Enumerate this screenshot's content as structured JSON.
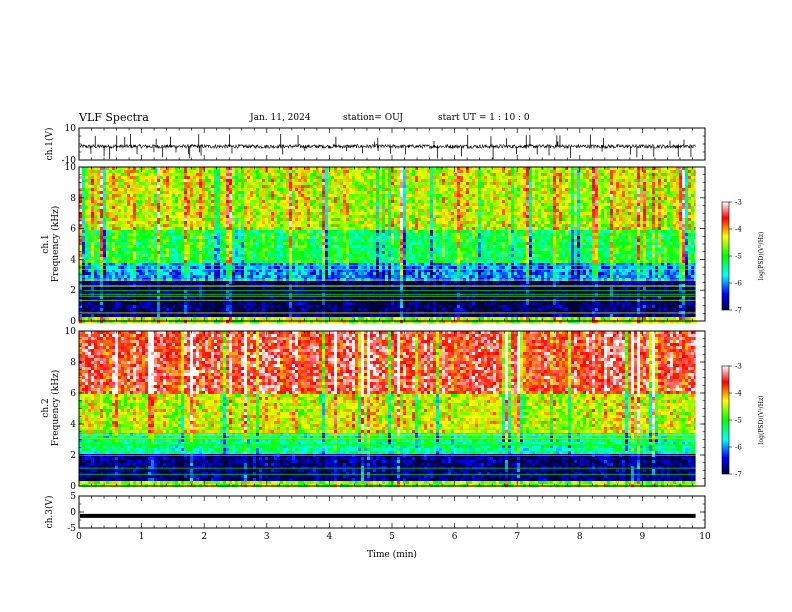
{
  "header": {
    "title": "VLF Spectra",
    "date": "Jan. 11, 2024",
    "station": "station= OUJ",
    "start": "start  UT =   1 : 10 : 0"
  },
  "chart_data": [
    {
      "type": "line",
      "panel": "ch1-waveform",
      "ylabel": "ch.1(V)",
      "ylim": [
        -10,
        10
      ],
      "yticks": [
        "10",
        "-10"
      ],
      "xlim": [
        0,
        10
      ],
      "series": [
        {
          "baseline": -1.5,
          "noise_amplitude": 1.2,
          "spike_amplitude": 8,
          "x_end": 9.85
        }
      ],
      "color": "#000000"
    },
    {
      "type": "heatmap",
      "panel": "ch1-spectrogram",
      "ylabel_line1": "ch.1",
      "ylabel_line2": "Frequency (kHz)",
      "ylim": [
        0,
        10
      ],
      "yticks": [
        "0",
        "2",
        "4",
        "6",
        "8",
        "10"
      ],
      "xlim": [
        0,
        10
      ],
      "x_end": 9.85,
      "colorbar": {
        "label": "log(PSD)(V²/Hz)",
        "range": [
          -7,
          -3
        ],
        "ticks": [
          "-3",
          "-4",
          "-5",
          "-6",
          "-7"
        ]
      },
      "bands": [
        {
          "f_low": 0,
          "f_high": 0.4,
          "level": -4.5
        },
        {
          "f_low": 0.4,
          "f_high": 2.6,
          "level": -6.9
        },
        {
          "f_low": 2.6,
          "f_high": 3.8,
          "level": -6.0
        },
        {
          "f_low": 3.8,
          "f_high": 6.0,
          "level": -5.1
        },
        {
          "f_low": 6.0,
          "f_high": 10,
          "level": -4.4
        }
      ]
    },
    {
      "type": "heatmap",
      "panel": "ch2-spectrogram",
      "ylabel_line1": "ch.2",
      "ylabel_line2": "Frequency (kHz)",
      "ylim": [
        0,
        10
      ],
      "yticks": [
        "0",
        "2",
        "4",
        "6",
        "8",
        "10"
      ],
      "xlim": [
        0,
        10
      ],
      "x_end": 9.85,
      "colorbar": {
        "label": "log(PSD)(V²/Hz)",
        "range": [
          -7,
          -3
        ],
        "ticks": [
          "-3",
          "-4",
          "-5",
          "-6",
          "-7"
        ]
      },
      "bands": [
        {
          "f_low": 0,
          "f_high": 0.4,
          "level": -4.6
        },
        {
          "f_low": 0.4,
          "f_high": 2.2,
          "level": -6.8
        },
        {
          "f_low": 2.2,
          "f_high": 3.6,
          "level": -5.4
        },
        {
          "f_low": 3.6,
          "f_high": 6.0,
          "level": -4.4
        },
        {
          "f_low": 6.0,
          "f_high": 10,
          "level": -3.5
        }
      ]
    },
    {
      "type": "line",
      "panel": "ch3-waveform",
      "ylabel": "ch.3(V)",
      "ylim": [
        -5,
        5
      ],
      "yticks": [
        "5",
        "0",
        "-5"
      ],
      "xlim": [
        0,
        10
      ],
      "xlabel": "Time  (min)",
      "xticks": [
        "0",
        "1",
        "2",
        "3",
        "4",
        "5",
        "6",
        "7",
        "8",
        "9",
        "10"
      ],
      "series": [
        {
          "baseline": -1.2,
          "x_end": 9.85
        }
      ],
      "color": "#000000"
    }
  ]
}
